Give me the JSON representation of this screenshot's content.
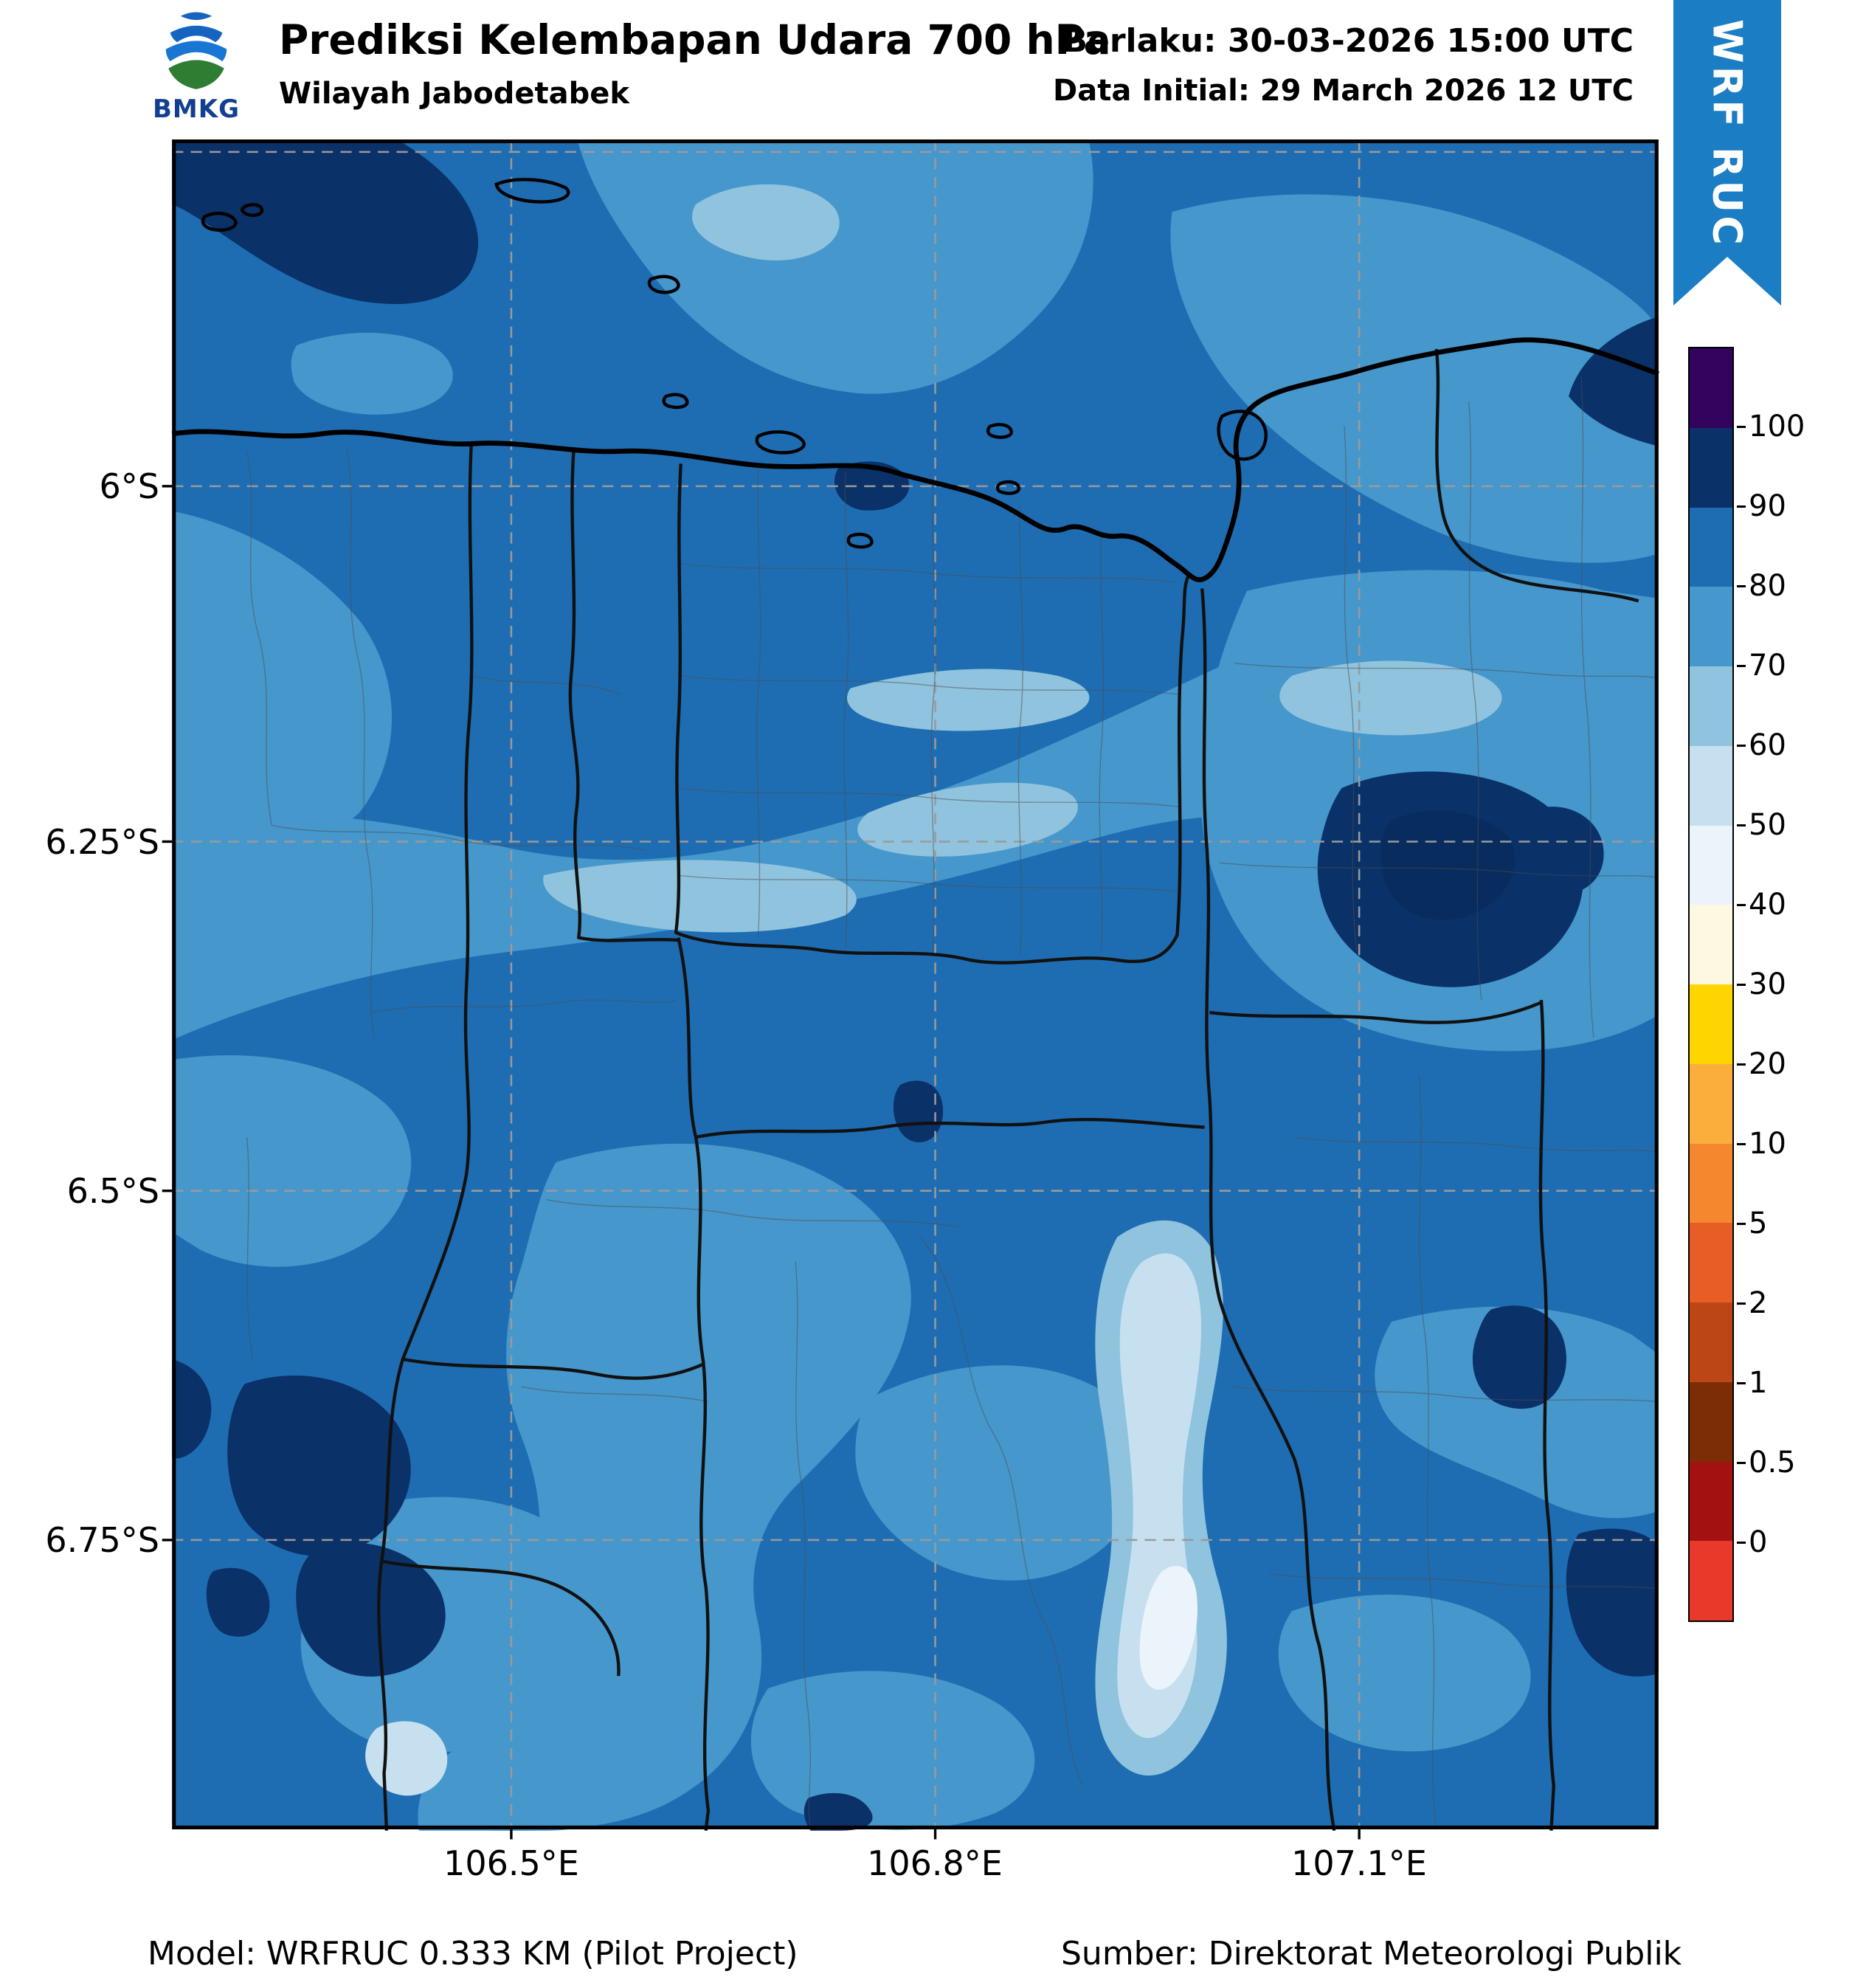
{
  "header": {
    "logo_text": "BMKG",
    "title": "Prediksi Kelembapan Udara 700 hPa",
    "subtitle": "Wilayah Jabodetabek",
    "valid_time": "Berlaku: 30-03-2026 15:00 UTC",
    "data_initial": "Data Initial: 29 March 2026 12 UTC",
    "ribbon_label": "WRF RUC",
    "ribbon_color": "#1b7ec4"
  },
  "footer": {
    "model": "Model: WRFRUC 0.333 KM (Pilot Project)",
    "source": "Sumber: Direktorat Meteorologi Publik"
  },
  "chart_data": {
    "type": "heatmap",
    "title": "Prediksi Kelembapan Udara 700 hPa",
    "region": "Wilayah Jabodetabek",
    "variable": "Relative humidity at 700 hPa (percent)",
    "x_axis": {
      "tick_labels": [
        "106.5°E",
        "106.8°E",
        "107.1°E"
      ]
    },
    "y_axis": {
      "tick_labels": [
        "6°S",
        "6.25°S",
        "6.5°S",
        "6.75°S"
      ]
    },
    "colorbar": {
      "tick_labels": [
        "100",
        "90",
        "80",
        "70",
        "60",
        "50",
        "40",
        "30",
        "20",
        "10",
        "5",
        "2",
        "1",
        "0.5",
        "0"
      ],
      "tick_values": [
        100,
        90,
        80,
        70,
        60,
        50,
        40,
        30,
        20,
        10,
        5,
        2,
        1,
        0.5,
        0
      ],
      "segment_colors_top_to_bottom": [
        "#33035e",
        "#0a3168",
        "#1e6db2",
        "#4697cc",
        "#8fc3de",
        "#c7e0ef",
        "#ebf4fa",
        "#fdf8e2",
        "#ffd500",
        "#fbae3c",
        "#f5872f",
        "#e85c25",
        "#bc4616",
        "#7c2d06",
        "#a31111",
        "#e8392b"
      ]
    },
    "field_regions": [
      {
        "area": "dominant background over land and sea",
        "rh_percent": "80-90"
      },
      {
        "area": "broad band from the west through central Jakarta rising northeast, plus northern coastal sea patches",
        "rh_percent": "70-80"
      },
      {
        "area": "pale streaks inside the central band",
        "rh_percent": "60-70"
      },
      {
        "area": "patch near 107.05E 6.3S, top-left sea corner, southwest Bogor cluster, bottom-right edge",
        "rh_percent": "90-100"
      },
      {
        "area": "narrow north-south streak near 106.95E between 6.45S and 6.8S",
        "rh_percent": "40-60"
      }
    ]
  }
}
